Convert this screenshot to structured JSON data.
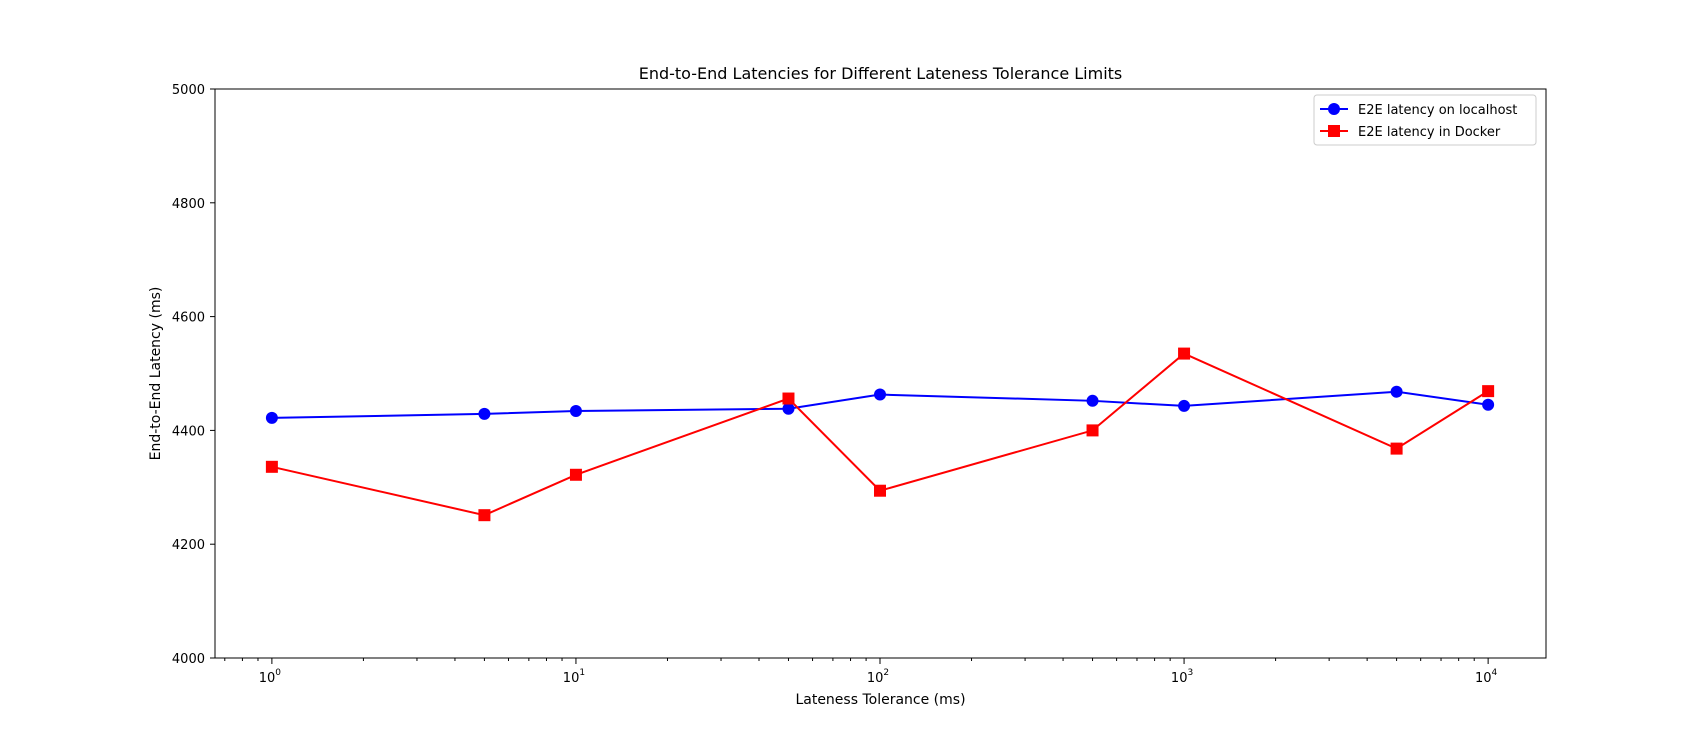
{
  "chart_data": {
    "type": "line",
    "title": "End-to-End Latencies for Different Lateness Tolerance Limits",
    "xlabel": "Lateness Tolerance (ms)",
    "ylabel": "End-to-End Latency (ms)",
    "xscale": "log",
    "xlim": [
      0.65,
      15500
    ],
    "ylim": [
      4000,
      5000
    ],
    "yticks": [
      4000,
      4200,
      4400,
      4600,
      4800,
      5000
    ],
    "xticks_major": [
      {
        "value": 1,
        "base": "10",
        "exp": "0"
      },
      {
        "value": 10,
        "base": "10",
        "exp": "1"
      },
      {
        "value": 100,
        "base": "10",
        "exp": "2"
      },
      {
        "value": 1000,
        "base": "10",
        "exp": "3"
      },
      {
        "value": 10000,
        "base": "10",
        "exp": "4"
      }
    ],
    "grid": false,
    "legend_position": "top-right",
    "x": [
      1,
      5,
      10,
      50,
      100,
      500,
      1000,
      5000,
      10000
    ],
    "series": [
      {
        "name": "E2E latency on localhost",
        "color": "#0000ff",
        "marker": "circle",
        "values": [
          4422,
          4429,
          4434,
          4438,
          4463,
          4452,
          4443,
          4468,
          4445
        ]
      },
      {
        "name": "E2E latency in Docker",
        "color": "#ff0000",
        "marker": "square",
        "values": [
          4336,
          4251,
          4322,
          4456,
          4294,
          4400,
          4535,
          4368,
          4469
        ]
      }
    ]
  }
}
